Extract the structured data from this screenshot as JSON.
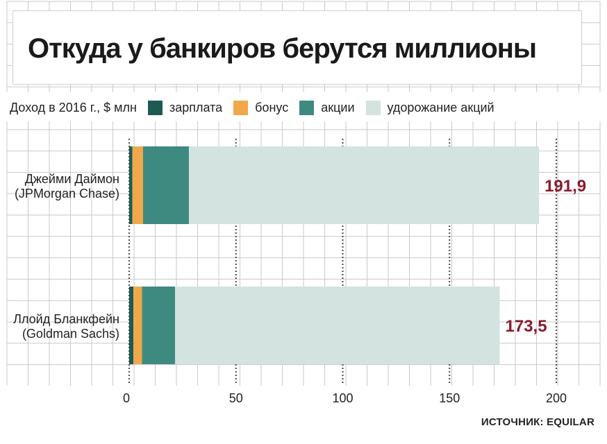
{
  "title": "Откуда у банкиров берутся миллионы",
  "source": "ИСТОЧНИК: EQUILAR",
  "colors": {
    "salary": "#1e5a52",
    "bonus": "#f0a84a",
    "stock": "#3f8a80",
    "appreciation": "#d3e3df",
    "total_label": "#8a1a2e",
    "grid_line": "#c9c9c9"
  },
  "chart_data": {
    "type": "bar",
    "orientation": "horizontal",
    "stacked": true,
    "legend_title": "Доход в 2016 г., $ млн",
    "legend_placement": "top-left",
    "categories": [
      [
        "Джейми Даймон",
        "(JPMorgan Chase)"
      ],
      [
        "Ллойд Бланкфейн",
        "(Goldman Sachs)"
      ]
    ],
    "series": [
      {
        "name": "зарплата",
        "key": "salary",
        "values": [
          1.5,
          2.0
        ]
      },
      {
        "name": "бонус",
        "key": "bonus",
        "values": [
          5.0,
          4.0
        ]
      },
      {
        "name": "акции",
        "key": "stock",
        "values": [
          21.5,
          15.5
        ]
      },
      {
        "name": "удорожание акций",
        "key": "appreciation",
        "values": [
          163.9,
          152.0
        ]
      }
    ],
    "totals": [
      "191,9",
      "173,5"
    ],
    "x_ticks": [
      0,
      50,
      100,
      150,
      200
    ],
    "xlim": [
      0,
      200
    ],
    "grid": true
  }
}
